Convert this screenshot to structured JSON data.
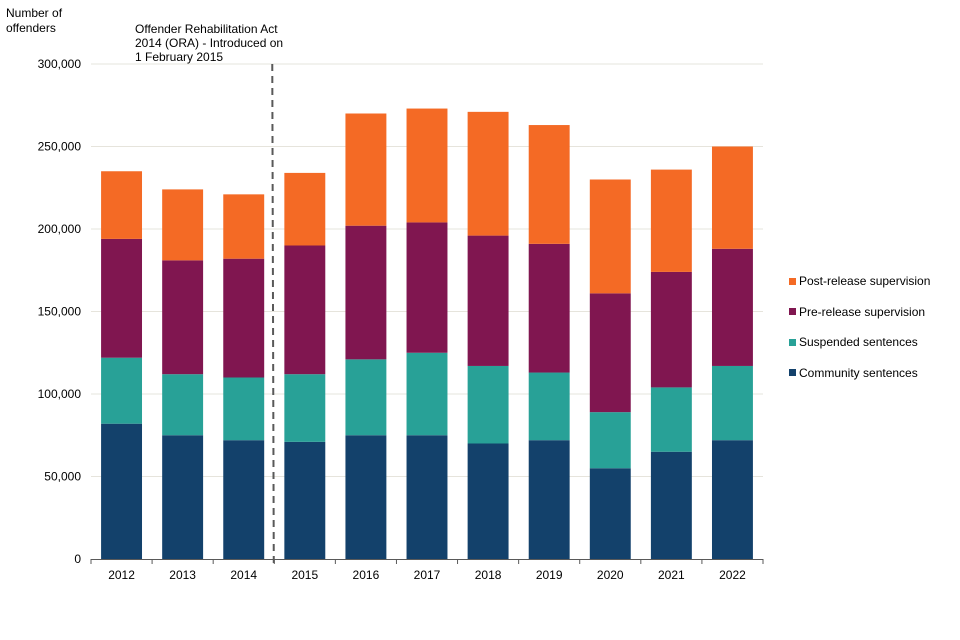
{
  "chart_data": {
    "type": "bar",
    "stacked": true,
    "title": "",
    "ylabel": "Number of offenders",
    "xlabel": "",
    "ylim": [
      0,
      300000
    ],
    "yticks": [
      0,
      50000,
      100000,
      150000,
      200000,
      250000,
      300000
    ],
    "ytick_labels": [
      "0",
      "50,000",
      "100,000",
      "150,000",
      "200,000",
      "250,000",
      "300,000"
    ],
    "grid": true,
    "legend_position": "right",
    "categories": [
      "2012",
      "2013",
      "2014",
      "2015",
      "2016",
      "2017",
      "2018",
      "2019",
      "2020",
      "2021",
      "2022"
    ],
    "series": [
      {
        "name": "Community sentences",
        "color": "#13416b",
        "values": [
          82000,
          75000,
          72000,
          71000,
          75000,
          75000,
          70000,
          72000,
          55000,
          65000,
          72000
        ]
      },
      {
        "name": "Suspended sentences",
        "color": "#28a197",
        "values": [
          40000,
          37000,
          38000,
          41000,
          46000,
          50000,
          47000,
          41000,
          34000,
          39000,
          45000
        ]
      },
      {
        "name": "Pre-release supervision",
        "color": "#801650",
        "values": [
          72000,
          69000,
          72000,
          78000,
          81000,
          79000,
          79000,
          78000,
          72000,
          70000,
          71000
        ]
      },
      {
        "name": "Post-release supervision",
        "color": "#f46a25",
        "values": [
          41000,
          43000,
          39000,
          44000,
          68000,
          69000,
          75000,
          72000,
          69000,
          62000,
          62000
        ]
      }
    ],
    "legend_order": [
      "Post-release supervision",
      "Pre-release supervision",
      "Suspended sentences",
      "Community sentences"
    ],
    "annotations": [
      {
        "text": "Offender Rehabilitation Act 2014 (ORA) - Introduced on 1 February 2015",
        "type": "vertical-dashed-line",
        "between": [
          "2014",
          "2015"
        ]
      }
    ]
  },
  "labels": {
    "ylabel": "Number of offenders",
    "annotation": "Offender Rehabilitation Act 2014 (ORA) - Introduced on 1 February 2015"
  }
}
